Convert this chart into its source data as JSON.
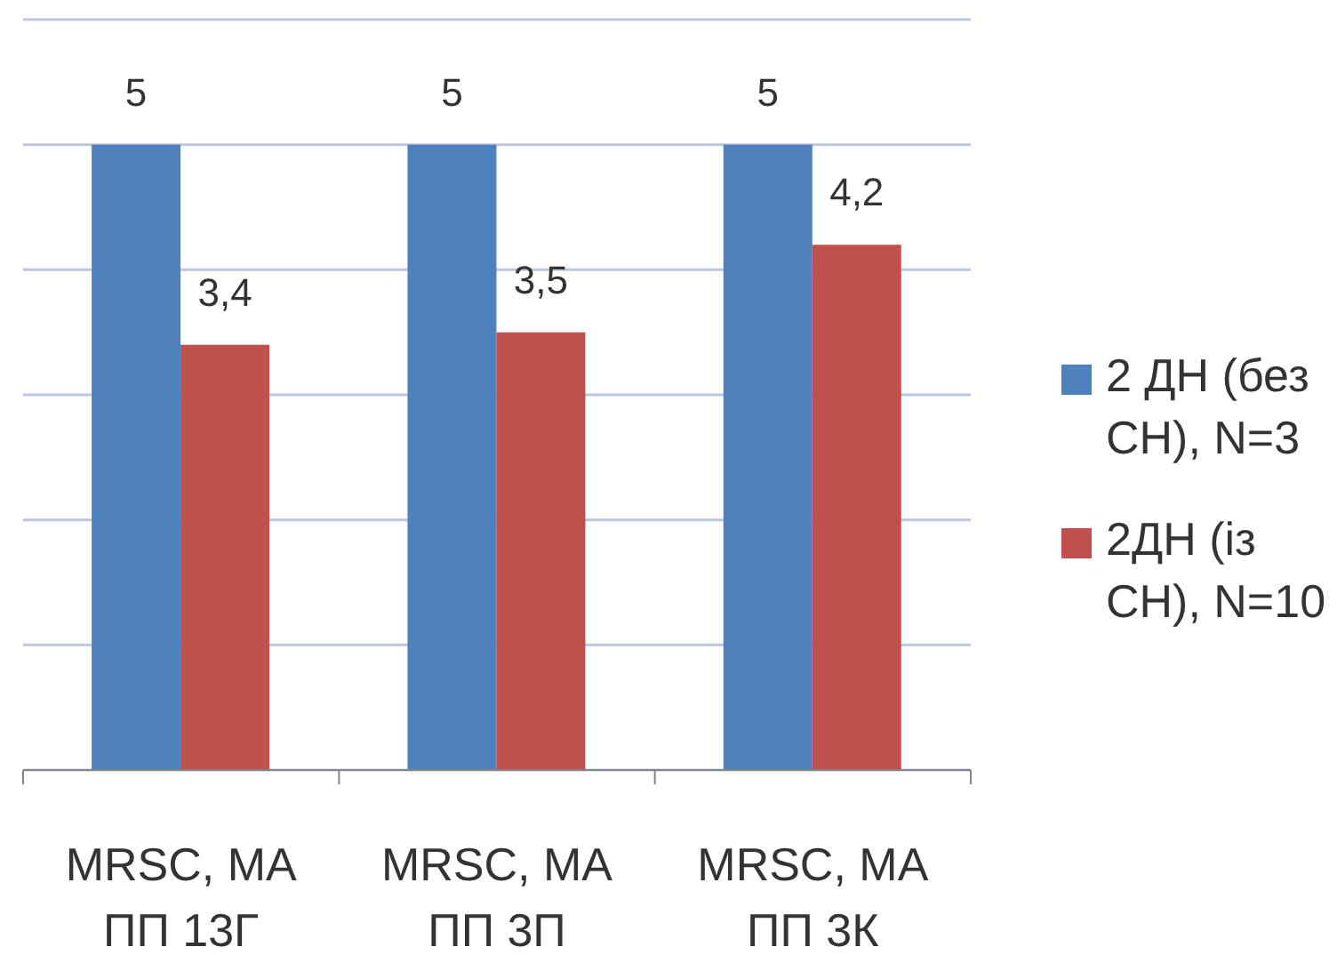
{
  "chart_data": {
    "type": "bar",
    "categories": [
      "MRSC, MA ПП 13Г",
      "MRSC, MA ПП 3П",
      "MRSC, MA ПП 3К"
    ],
    "series": [
      {
        "name": "2 ДН (без СН), N=3",
        "color": "#4f81bd",
        "values": [
          5,
          5,
          5
        ],
        "value_labels": [
          "5",
          "5",
          "5"
        ]
      },
      {
        "name": "2ДН (із СН), N=10",
        "color": "#c0504d",
        "values": [
          3.4,
          3.5,
          4.2
        ],
        "value_labels": [
          "3,4",
          "3,5",
          "4,2"
        ]
      }
    ],
    "ylim": [
      0,
      6
    ],
    "yticks": [
      {
        "value": 0,
        "label": null
      },
      {
        "value": 1,
        "label": null
      },
      {
        "value": 2,
        "label": null
      },
      {
        "value": 3,
        "label": null
      },
      {
        "value": 4,
        "label": null
      },
      {
        "value": 5,
        "label": null
      },
      {
        "value": 6,
        "label": null
      }
    ],
    "tick_labels": "x",
    "grid": "y",
    "legend": "right"
  }
}
